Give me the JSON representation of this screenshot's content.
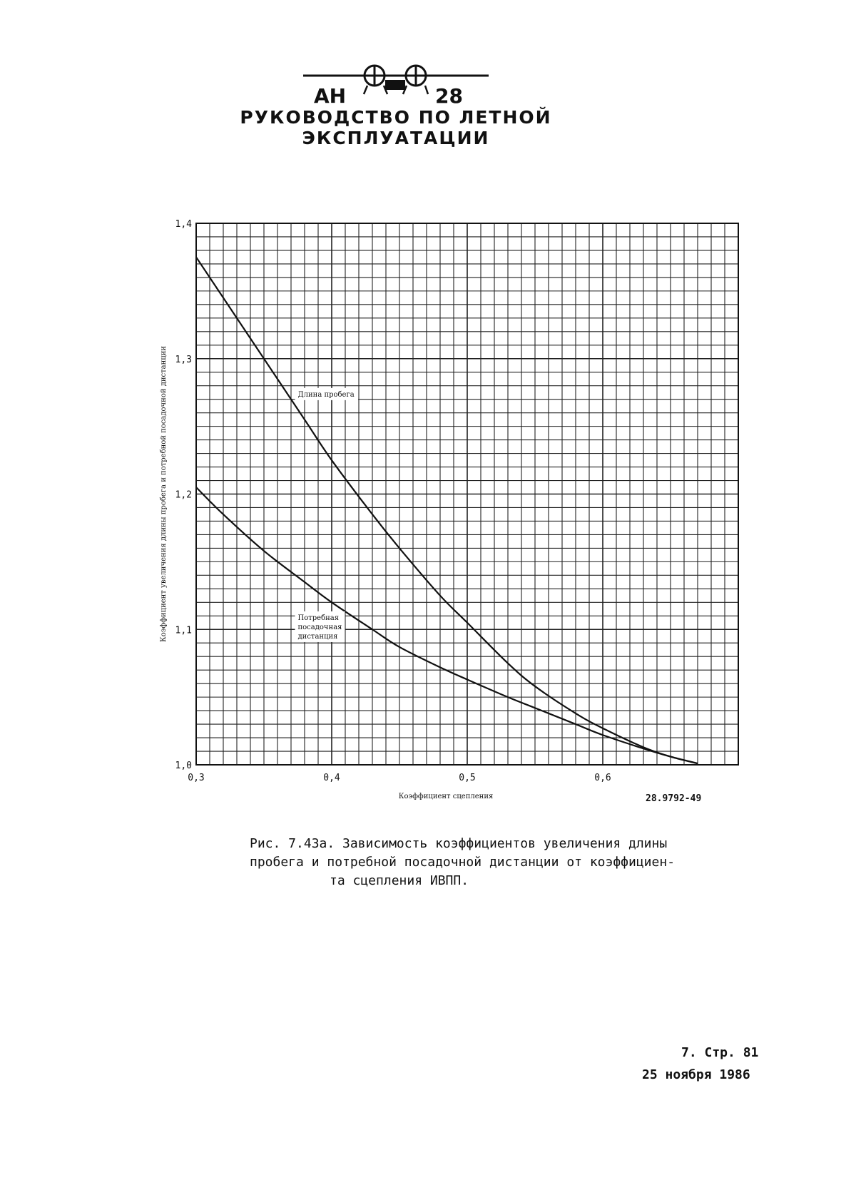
{
  "header": {
    "logo_text_left": "АН",
    "logo_text_right": "28",
    "manual_title": "РУКОВОДСТВО ПО ЛЕТНОЙ ЭКСПЛУАТАЦИИ"
  },
  "chart_data": {
    "type": "line",
    "xlabel": "Коэффициент сцепления",
    "ylabel": "Коэффициент увеличения длины пробега и потребной посадочной дистанции",
    "xlim": [
      0.3,
      0.7
    ],
    "ylim": [
      1.0,
      1.4
    ],
    "x_ticks": [
      "0,3",
      "0,4",
      "0,5",
      "0,6"
    ],
    "y_ticks": [
      "1,0",
      "1,1",
      "1,2",
      "1,3",
      "1,4"
    ],
    "grid": true,
    "series": [
      {
        "name": "Длина пробега",
        "x": [
          0.3,
          0.32,
          0.35,
          0.38,
          0.4,
          0.43,
          0.45,
          0.48,
          0.5,
          0.53,
          0.55,
          0.58,
          0.6,
          0.63,
          0.65,
          0.67
        ],
        "y": [
          1.375,
          1.345,
          1.3,
          1.255,
          1.225,
          1.185,
          1.16,
          1.125,
          1.105,
          1.075,
          1.058,
          1.038,
          1.027,
          1.013,
          1.006,
          1.001
        ]
      },
      {
        "name": "Потребная посадочная дистанция",
        "x": [
          0.3,
          0.32,
          0.35,
          0.38,
          0.4,
          0.43,
          0.45,
          0.48,
          0.5,
          0.53,
          0.55,
          0.58,
          0.6,
          0.63,
          0.65,
          0.67
        ],
        "y": [
          1.205,
          1.185,
          1.158,
          1.135,
          1.12,
          1.1,
          1.087,
          1.072,
          1.063,
          1.05,
          1.042,
          1.03,
          1.022,
          1.012,
          1.006,
          1.001
        ]
      }
    ],
    "annotations": [
      "Длина пробега",
      "Потребная посадочная дистанция"
    ]
  },
  "figure": {
    "code": "28.9792-49",
    "caption_lines": [
      "Рис. 7.43а. Зависимость коэффициентов увеличения длины",
      "пробега и потребной посадочной дистанции от коэффициен-",
      "та сцепления ИВПП."
    ]
  },
  "footer": {
    "page": "7. Стр. 81",
    "date": "25 ноября 1986"
  }
}
